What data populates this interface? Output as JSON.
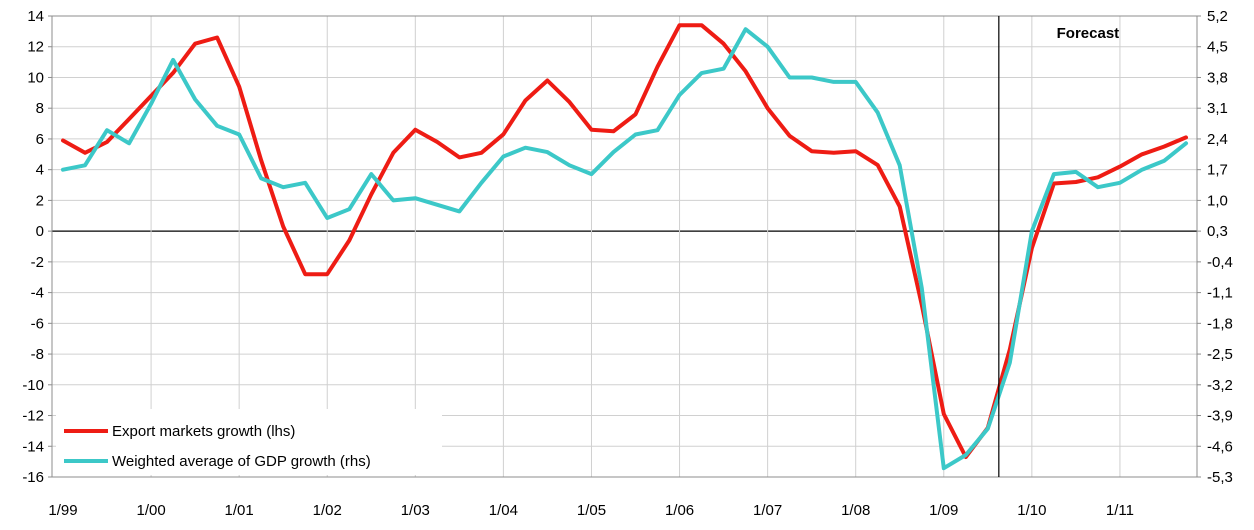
{
  "chart_data": {
    "type": "line",
    "title": "",
    "annotation": "Forecast",
    "x_labels": [
      "1/99",
      "1/00",
      "1/01",
      "1/02",
      "1/03",
      "1/04",
      "1/05",
      "1/06",
      "1/07",
      "1/08",
      "1/09",
      "1/10",
      "1/11"
    ],
    "forecast_start_x": 42.5,
    "grid": true,
    "legend_position": "bottom-left",
    "left_axis": {
      "min": -16,
      "max": 14,
      "ticks": [
        "14",
        "12",
        "10",
        "8",
        "6",
        "4",
        "2",
        "0",
        "-2",
        "-4",
        "-6",
        "-8",
        "-10",
        "-12",
        "-14",
        "-16"
      ]
    },
    "right_axis": {
      "min": -5.3,
      "max": 5.2,
      "ticks": [
        "5,2",
        "4,5",
        "3,8",
        "3,1",
        "2,4",
        "1,7",
        "1,0",
        "0,3",
        "-0,4",
        "-1,1",
        "-1,8",
        "-2,5",
        "-3,2",
        "-3,9",
        "-4,6",
        "-5,3"
      ]
    },
    "series": [
      {
        "name": "Export markets growth (lhs)",
        "color": "#ee1c14",
        "axis": "left",
        "x": [
          0,
          1,
          2,
          3,
          4,
          5,
          6,
          7,
          8,
          9,
          10,
          11,
          12,
          13,
          14,
          15,
          16,
          17,
          18,
          19,
          20,
          21,
          22,
          23,
          24,
          25,
          26,
          27,
          28,
          29,
          30,
          31,
          32,
          33,
          34,
          35,
          36,
          37,
          38,
          39,
          40,
          41,
          42,
          43,
          44,
          45,
          46,
          47,
          48,
          49,
          50,
          51
        ],
        "values": [
          5.9,
          5.1,
          5.8,
          7.3,
          8.8,
          10.3,
          12.2,
          12.6,
          9.4,
          4.6,
          0.3,
          -2.8,
          -2.8,
          -0.6,
          2.4,
          5.1,
          6.6,
          5.8,
          4.8,
          5.1,
          6.3,
          8.5,
          9.8,
          8.4,
          6.6,
          6.5,
          7.6,
          10.7,
          13.4,
          13.4,
          12.2,
          10.4,
          8.0,
          6.2,
          5.2,
          5.1,
          5.2,
          4.3,
          1.6,
          -4.8,
          -11.9,
          -14.7,
          -12.8,
          -7.7,
          -1.1,
          3.1,
          3.2,
          3.5,
          4.2,
          5.0,
          5.5,
          6.1
        ]
      },
      {
        "name": "Weighted average of GDP growth (rhs)",
        "color": "#3cc8c8",
        "axis": "right",
        "x": [
          0,
          1,
          2,
          3,
          4,
          5,
          6,
          7,
          8,
          9,
          10,
          11,
          12,
          13,
          14,
          15,
          16,
          17,
          18,
          19,
          20,
          21,
          22,
          23,
          24,
          25,
          26,
          27,
          28,
          29,
          30,
          31,
          32,
          33,
          34,
          35,
          36,
          37,
          38,
          39,
          40,
          41,
          42,
          43,
          44,
          45,
          46,
          47,
          48,
          49,
          50,
          51
        ],
        "values": [
          1.7,
          1.8,
          2.6,
          2.3,
          3.2,
          4.2,
          3.3,
          2.7,
          2.5,
          1.5,
          1.3,
          1.4,
          0.6,
          0.8,
          1.6,
          1.0,
          1.05,
          0.9,
          0.75,
          1.4,
          2.0,
          2.2,
          2.1,
          1.8,
          1.6,
          2.1,
          2.5,
          2.6,
          3.4,
          3.9,
          4.0,
          4.9,
          4.5,
          3.8,
          3.8,
          3.7,
          3.7,
          3.0,
          1.8,
          -1.0,
          -5.1,
          -4.8,
          -4.2,
          -2.7,
          0.3,
          1.6,
          1.65,
          1.3,
          1.4,
          1.7,
          1.9,
          2.3
        ]
      }
    ]
  }
}
